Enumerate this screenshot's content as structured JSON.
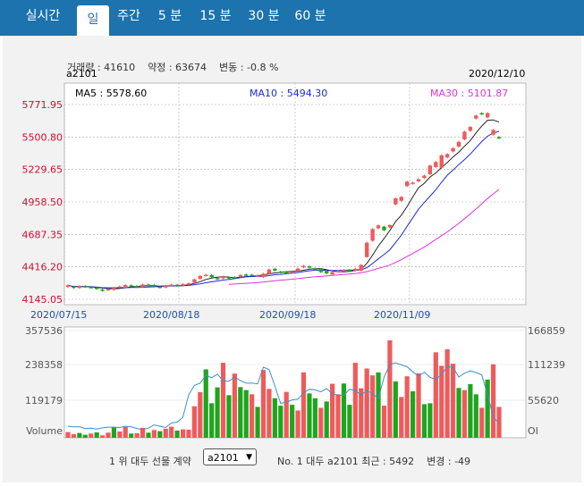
{
  "tabs": [
    "실시간",
    "일",
    "주간",
    "5 분",
    "15 분",
    "30 분",
    "60 분"
  ],
  "active_tab": 1,
  "stats": {
    "volume_label": "거래량",
    "volume": "41610",
    "open_label": "약정",
    "open": "63674",
    "change_label": "변동",
    "change": "-0.8 %"
  },
  "code": "a2101",
  "date": "2020/12/10",
  "ma": {
    "ma5": "MA5 : 5578.60",
    "ma10": "MA10 : 5494.30",
    "ma30": "MA30 : 5101.87"
  },
  "price_ticks": [
    "5771.95",
    "5500.80",
    "5229.65",
    "4958.50",
    "4687.35",
    "4416.20",
    "4145.05"
  ],
  "date_ticks": [
    "2020/07/15",
    "2020/08/18",
    "2020/09/18",
    "2020/11/09"
  ],
  "vol_left_ticks": [
    "357536",
    "238358",
    "119179",
    "Volume"
  ],
  "vol_right_ticks": [
    "166859",
    "111239",
    "55620",
    "OI"
  ],
  "footer": {
    "rank_label": "1 위 대두 선물 계약",
    "selected": "a2101",
    "info": "No. 1 대두 a2101 최근 : 5492    변경 : -49"
  },
  "colors": {
    "up": "#f05a5a",
    "down": "#1ea51e",
    "ma5": "#222222",
    "ma10": "#1e2bd8",
    "ma30": "#dd33dd",
    "oi": "#3b8fd0"
  },
  "chart_data": {
    "type": "candlestick",
    "ylim": [
      4145.05,
      5771.95
    ],
    "candles": [
      [
        4248,
        4262
      ],
      [
        4252,
        4240
      ],
      [
        4240,
        4254
      ],
      [
        4255,
        4248
      ],
      [
        4248,
        4242
      ],
      [
        4242,
        4232
      ],
      [
        4226,
        4218
      ],
      [
        4220,
        4232
      ],
      [
        4224,
        4242
      ],
      [
        4248,
        4252
      ],
      [
        4250,
        4264
      ],
      [
        4262,
        4255
      ],
      [
        4255,
        4248
      ],
      [
        4248,
        4268
      ],
      [
        4268,
        4262
      ],
      [
        4265,
        4252
      ],
      [
        4250,
        4244
      ],
      [
        4244,
        4258
      ],
      [
        4258,
        4268
      ],
      [
        4266,
        4258
      ],
      [
        4260,
        4272
      ],
      [
        4270,
        4278
      ],
      [
        4285,
        4312
      ],
      [
        4316,
        4340
      ],
      [
        4342,
        4350
      ],
      [
        4348,
        4330
      ],
      [
        4322,
        4314
      ],
      [
        4320,
        4334
      ],
      [
        4330,
        4322
      ],
      [
        4330,
        4326
      ],
      [
        4335,
        4348
      ],
      [
        4352,
        4345
      ],
      [
        4350,
        4345
      ],
      [
        4342,
        4345
      ],
      [
        4330,
        4358
      ],
      [
        4358,
        4394
      ],
      [
        4400,
        4385
      ],
      [
        4376,
        4368
      ],
      [
        4375,
        4370
      ],
      [
        4365,
        4375
      ],
      [
        4380,
        4402
      ],
      [
        4412,
        4424
      ],
      [
        4420,
        4412
      ],
      [
        4402,
        4392
      ],
      [
        4398,
        4372
      ],
      [
        4382,
        4362
      ],
      [
        4352,
        4372
      ],
      [
        4375,
        4380
      ],
      [
        4385,
        4390
      ],
      [
        4390,
        4385
      ],
      [
        4385,
        4400
      ],
      [
        4385,
        4432
      ],
      [
        4498,
        4618
      ],
      [
        4634,
        4732
      ],
      [
        4738,
        4762
      ],
      [
        4752,
        4722
      ],
      [
        4745,
        4765
      ],
      [
        4938,
        4988
      ],
      [
        4968,
        5000
      ],
      [
        5090,
        5128
      ],
      [
        5110,
        5120
      ],
      [
        5130,
        5148
      ],
      [
        5158,
        5178
      ],
      [
        5190,
        5262
      ],
      [
        5250,
        5292
      ],
      [
        5244,
        5348
      ],
      [
        5330,
        5358
      ],
      [
        5380,
        5408
      ],
      [
        5420,
        5460
      ],
      [
        5480,
        5545
      ],
      [
        5552,
        5585
      ],
      [
        5655,
        5680
      ],
      [
        5700,
        5692
      ],
      [
        5665,
        5700
      ],
      [
        5520,
        5560
      ],
      [
        5500,
        5492
      ]
    ],
    "volume_max": 357536,
    "oi_max": 166859,
    "volume": [
      19000,
      12000,
      16000,
      10000,
      14000,
      18000,
      8000,
      17000,
      34000,
      21000,
      36000,
      14000,
      15000,
      33000,
      17000,
      26000,
      22000,
      30000,
      37000,
      24000,
      28000,
      27000,
      105000,
      152000,
      228000,
      115000,
      168000,
      250000,
      142000,
      214000,
      169000,
      159000,
      145000,
      103000,
      226000,
      163000,
      132000,
      107000,
      153000,
      110000,
      91000,
      218000,
      148000,
      132000,
      100000,
      121000,
      180000,
      145000,
      181000,
      110000,
      250000,
      165000,
      231000,
      208000,
      218000,
      107000,
      325000,
      188000,
      136000,
      205000,
      155000,
      215000,
      112000,
      115000,
      285000,
      240000,
      295000,
      247000,
      166000,
      159000,
      179000,
      145000,
      100000,
      194000,
      245000,
      103000
    ],
    "volume_up": [
      1,
      1,
      0,
      0,
      1,
      0,
      1,
      1,
      0,
      1,
      1,
      0,
      1,
      1,
      0,
      1,
      0,
      1,
      1,
      0,
      1,
      1,
      1,
      1,
      0,
      0,
      0,
      1,
      0,
      1,
      0,
      0,
      1,
      0,
      1,
      1,
      0,
      0,
      1,
      0,
      1,
      1,
      0,
      0,
      1,
      0,
      1,
      1,
      0,
      0,
      1,
      1,
      1,
      1,
      0,
      1,
      1,
      0,
      1,
      1,
      0,
      1,
      0,
      0,
      1,
      1,
      1,
      1,
      0,
      1,
      0,
      0,
      1,
      0,
      1,
      1
    ],
    "oi": [
      1800,
      1700,
      1700,
      1450,
      1500,
      1350,
      1550,
      1650,
      1650,
      1600,
      1800,
      1700,
      1450,
      1300,
      1500,
      2000,
      1800,
      1600,
      2300,
      2450,
      3200,
      6700,
      8150,
      8500,
      9750,
      9350,
      9900,
      8850,
      8800,
      9450,
      8900,
      8500,
      8500,
      8400,
      11000,
      10600,
      8050,
      5350,
      5550,
      5900,
      6000,
      7000,
      7550,
      7450,
      7150,
      7650,
      6850,
      6600,
      6600,
      7550,
      7350,
      6650,
      7350,
      6850,
      6100,
      9450,
      11400,
      11650,
      11350,
      11050,
      10250,
      9600,
      10200,
      9400,
      9100,
      9850,
      11100,
      10950,
      9450,
      10050,
      10400,
      10150,
      9800,
      6700,
      3300,
      2150
    ]
  }
}
